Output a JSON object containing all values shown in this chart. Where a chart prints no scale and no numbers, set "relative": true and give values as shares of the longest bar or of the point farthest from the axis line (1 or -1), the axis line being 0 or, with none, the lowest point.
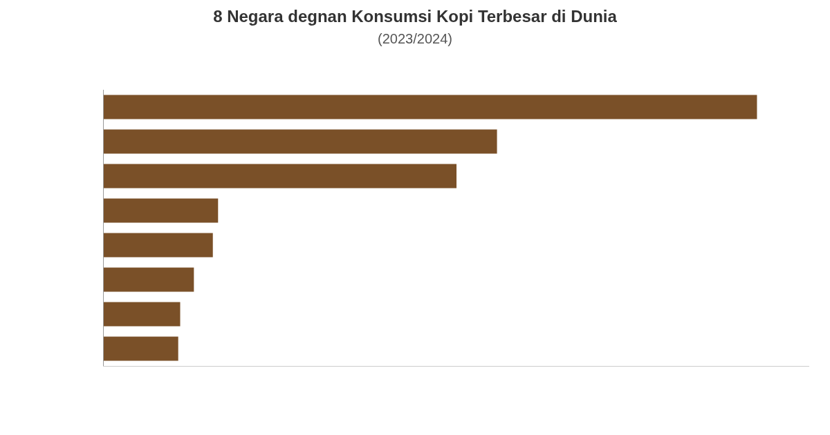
{
  "chart_data": {
    "type": "bar",
    "title": "8 Negara degnan Konsumsi Kopi Terbesar di Dunia",
    "subtitle": "(2023/2024)",
    "orientation": "horizontal",
    "relative": true,
    "categories": [
      null,
      null,
      null,
      null,
      null,
      null,
      null,
      null
    ],
    "values": [
      1,
      0.602,
      0.54,
      0.175,
      0.167,
      0.138,
      0.117,
      0.114
    ],
    "color": "#7a5028"
  }
}
